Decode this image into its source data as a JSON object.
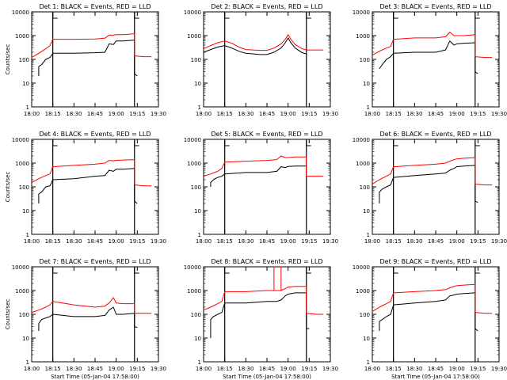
{
  "figure": {
    "background": "#ffffff",
    "colors": {
      "events": "#000000",
      "lld": "#ff0000",
      "axes": "#000000"
    }
  },
  "chart_data": [
    {
      "type": "line",
      "title": "Det 1: BLACK = Events, RED = LLD",
      "xlabel": "",
      "ylabel": "Counts/sec",
      "y_scale": "log",
      "ylim": [
        1,
        10000
      ],
      "y_ticks": [
        "1",
        "10",
        "100",
        "1000",
        "10000"
      ],
      "x_ticks": [
        "18:00",
        "18:15",
        "18:30",
        "18:45",
        "19:00",
        "19:15",
        "19:30"
      ],
      "markers": [
        "18:15",
        "19:13"
      ],
      "series": [
        {
          "role": "events",
          "color": "#000000",
          "x": [
            "18:05",
            "18:05",
            "18:07",
            "18:10",
            "18:13",
            "18:15",
            "18:30",
            "18:45",
            "18:52",
            "18:55",
            "18:58",
            "19:00",
            "19:05",
            "19:13",
            "19:13",
            "19:15"
          ],
          "y": [
            20,
            50,
            60,
            100,
            120,
            180,
            180,
            190,
            200,
            450,
            420,
            600,
            600,
            650,
            25,
            20
          ]
        },
        {
          "role": "lld",
          "color": "#ff0000",
          "x": [
            "18:00",
            "18:05",
            "18:10",
            "18:13",
            "18:15",
            "18:30",
            "18:45",
            "18:52",
            "18:55",
            "18:58",
            "19:00",
            "19:05",
            "19:13",
            "19:13",
            "19:20",
            "19:25"
          ],
          "y": [
            120,
            180,
            280,
            380,
            700,
            700,
            720,
            780,
            1050,
            1050,
            1100,
            1100,
            1200,
            140,
            130,
            130
          ]
        }
      ]
    },
    {
      "type": "line",
      "title": "Det 2: BLACK = Events, RED = LLD",
      "xlabel": "",
      "ylabel": "",
      "y_scale": "log",
      "ylim": [
        1,
        10000
      ],
      "y_ticks": [
        "1",
        "10",
        "100",
        "1000",
        "10000"
      ],
      "x_ticks": [
        "18:00",
        "18:15",
        "18:30",
        "18:45",
        "19:00",
        "19:15",
        "19:30"
      ],
      "markers": [
        "18:15",
        "19:13"
      ],
      "series": [
        {
          "role": "events",
          "color": "#000000",
          "x": [
            "18:00",
            "18:05",
            "18:10",
            "18:15",
            "18:20",
            "18:25",
            "18:30",
            "18:40",
            "18:45",
            "18:50",
            "18:55",
            "18:58",
            "19:00",
            "19:02",
            "19:05",
            "19:10",
            "19:13"
          ],
          "y": [
            200,
            260,
            330,
            380,
            300,
            220,
            180,
            160,
            160,
            200,
            300,
            500,
            800,
            500,
            300,
            190,
            170
          ]
        },
        {
          "role": "lld",
          "color": "#ff0000",
          "x": [
            "18:00",
            "18:05",
            "18:10",
            "18:15",
            "18:20",
            "18:25",
            "18:30",
            "18:40",
            "18:45",
            "18:50",
            "18:55",
            "18:58",
            "19:00",
            "19:02",
            "19:05",
            "19:10",
            "19:13",
            "19:20",
            "19:25"
          ],
          "y": [
            280,
            380,
            500,
            600,
            480,
            330,
            260,
            240,
            240,
            300,
            450,
            700,
            1100,
            700,
            420,
            280,
            250,
            250,
            250
          ]
        }
      ]
    },
    {
      "type": "line",
      "title": "Det 3: BLACK = Events, RED = LLD",
      "xlabel": "",
      "ylabel": "",
      "y_scale": "log",
      "ylim": [
        1,
        10000
      ],
      "y_ticks": [
        "1",
        "10",
        "100",
        "1000",
        "10000"
      ],
      "x_ticks": [
        "18:00",
        "18:15",
        "18:30",
        "18:45",
        "19:00",
        "19:15",
        "19:30"
      ],
      "markers": [
        "18:15",
        "19:13"
      ],
      "series": [
        {
          "role": "events",
          "color": "#000000",
          "x": [
            "18:05",
            "18:07",
            "18:10",
            "18:13",
            "18:15",
            "18:30",
            "18:45",
            "18:52",
            "18:55",
            "18:58",
            "19:00",
            "19:05",
            "19:13",
            "19:13",
            "19:15"
          ],
          "y": [
            40,
            60,
            100,
            130,
            180,
            200,
            200,
            250,
            600,
            400,
            450,
            480,
            500,
            30,
            25
          ]
        },
        {
          "role": "lld",
          "color": "#ff0000",
          "x": [
            "18:00",
            "18:05",
            "18:10",
            "18:13",
            "18:15",
            "18:30",
            "18:45",
            "18:52",
            "18:55",
            "18:58",
            "19:00",
            "19:05",
            "19:13",
            "19:13",
            "19:20",
            "19:25"
          ],
          "y": [
            150,
            220,
            300,
            350,
            700,
            800,
            800,
            900,
            1400,
            1000,
            1000,
            1000,
            1100,
            130,
            120,
            120
          ]
        }
      ]
    },
    {
      "type": "line",
      "title": "Det 4: BLACK = Events, RED = LLD",
      "xlabel": "",
      "ylabel": "Counts/sec",
      "y_scale": "log",
      "ylim": [
        1,
        10000
      ],
      "y_ticks": [
        "1",
        "10",
        "100",
        "1000",
        "10000"
      ],
      "x_ticks": [
        "18:00",
        "18:15",
        "18:30",
        "18:45",
        "19:00",
        "19:15",
        "19:30"
      ],
      "markers": [
        "18:15",
        "19:13"
      ],
      "series": [
        {
          "role": "events",
          "color": "#000000",
          "x": [
            "18:05",
            "18:05",
            "18:07",
            "18:10",
            "18:13",
            "18:15",
            "18:30",
            "18:45",
            "18:52",
            "18:55",
            "18:58",
            "19:00",
            "19:05",
            "19:13",
            "19:13",
            "19:15"
          ],
          "y": [
            20,
            50,
            60,
            100,
            110,
            200,
            220,
            280,
            300,
            500,
            450,
            550,
            550,
            600,
            25,
            20
          ]
        },
        {
          "role": "lld",
          "color": "#ff0000",
          "x": [
            "18:00",
            "18:05",
            "18:10",
            "18:13",
            "18:15",
            "18:30",
            "18:45",
            "18:52",
            "18:55",
            "18:58",
            "19:00",
            "19:05",
            "19:13",
            "19:13",
            "19:20",
            "19:25"
          ],
          "y": [
            150,
            220,
            300,
            350,
            700,
            800,
            900,
            1000,
            1300,
            1250,
            1300,
            1350,
            1400,
            120,
            110,
            110
          ]
        }
      ]
    },
    {
      "type": "line",
      "title": "Det 5: BLACK = Events, RED = LLD",
      "xlabel": "",
      "ylabel": "",
      "y_scale": "log",
      "ylim": [
        1,
        10000
      ],
      "y_ticks": [
        "1",
        "10",
        "100",
        "1000",
        "10000"
      ],
      "x_ticks": [
        "18:00",
        "18:15",
        "18:30",
        "18:45",
        "19:00",
        "19:15",
        "19:30"
      ],
      "markers": [
        "18:15",
        "19:13"
      ],
      "series": [
        {
          "role": "events",
          "color": "#000000",
          "x": [
            "18:05",
            "18:05",
            "18:07",
            "18:10",
            "18:13",
            "18:15",
            "18:30",
            "18:45",
            "18:52",
            "18:55",
            "18:58",
            "19:00",
            "19:05",
            "19:13"
          ],
          "y": [
            100,
            150,
            200,
            250,
            280,
            350,
            400,
            400,
            450,
            700,
            650,
            720,
            750,
            750
          ]
        },
        {
          "role": "lld",
          "color": "#ff0000",
          "x": [
            "18:00",
            "18:05",
            "18:10",
            "18:13",
            "18:15",
            "18:30",
            "18:45",
            "18:52",
            "18:55",
            "18:58",
            "19:00",
            "19:05",
            "19:13",
            "19:13",
            "19:20",
            "19:25"
          ],
          "y": [
            280,
            350,
            450,
            600,
            1100,
            1200,
            1300,
            1400,
            2000,
            1700,
            1700,
            1800,
            1800,
            280,
            280,
            280
          ]
        }
      ]
    },
    {
      "type": "line",
      "title": "Det 6: BLACK = Events, RED = LLD",
      "xlabel": "",
      "ylabel": "",
      "y_scale": "log",
      "ylim": [
        1,
        10000
      ],
      "y_ticks": [
        "1",
        "10",
        "100",
        "1000",
        "10000"
      ],
      "x_ticks": [
        "18:00",
        "18:15",
        "18:30",
        "18:45",
        "19:00",
        "19:15",
        "19:30"
      ],
      "markers": [
        "18:15",
        "19:13"
      ],
      "series": [
        {
          "role": "events",
          "color": "#000000",
          "x": [
            "18:05",
            "18:05",
            "18:07",
            "18:10",
            "18:13",
            "18:15",
            "18:30",
            "18:45",
            "18:52",
            "18:55",
            "18:58",
            "19:00",
            "19:05",
            "19:13",
            "19:13",
            "19:15"
          ],
          "y": [
            20,
            60,
            80,
            100,
            120,
            250,
            300,
            350,
            380,
            500,
            600,
            700,
            750,
            800,
            25,
            22
          ]
        },
        {
          "role": "lld",
          "color": "#ff0000",
          "x": [
            "18:00",
            "18:05",
            "18:10",
            "18:13",
            "18:15",
            "18:30",
            "18:45",
            "18:52",
            "18:55",
            "18:58",
            "19:00",
            "19:05",
            "19:13",
            "19:13",
            "19:20",
            "19:25"
          ],
          "y": [
            130,
            200,
            280,
            350,
            700,
            800,
            900,
            1000,
            1200,
            1400,
            1500,
            1600,
            1700,
            130,
            120,
            120
          ]
        }
      ]
    },
    {
      "type": "line",
      "title": "Det 7: BLACK = Events, RED = LLD",
      "xlabel": "Start Time (05-Jan-04 17:58:00)",
      "ylabel": "Counts/sec",
      "y_scale": "log",
      "ylim": [
        1,
        10000
      ],
      "y_ticks": [
        "1",
        "10",
        "100",
        "1000",
        "10000"
      ],
      "x_ticks": [
        "18:00",
        "18:15",
        "18:30",
        "18:45",
        "19:00",
        "19:15",
        "19:30"
      ],
      "markers": [
        "18:15",
        "19:13"
      ],
      "series": [
        {
          "role": "events",
          "color": "#000000",
          "x": [
            "18:05",
            "18:05",
            "18:07",
            "18:10",
            "18:13",
            "18:15",
            "18:30",
            "18:45",
            "18:52",
            "18:55",
            "18:58",
            "19:00",
            "19:05",
            "19:13",
            "19:13",
            "19:15"
          ],
          "y": [
            20,
            40,
            60,
            70,
            80,
            100,
            80,
            80,
            90,
            150,
            200,
            100,
            100,
            110,
            30,
            28
          ]
        },
        {
          "role": "lld",
          "color": "#ff0000",
          "x": [
            "18:00",
            "18:05",
            "18:10",
            "18:13",
            "18:15",
            "18:30",
            "18:45",
            "18:52",
            "18:55",
            "18:58",
            "19:00",
            "19:05",
            "19:13",
            "19:13",
            "19:20",
            "19:25"
          ],
          "y": [
            120,
            150,
            200,
            250,
            350,
            250,
            200,
            220,
            300,
            500,
            300,
            280,
            280,
            110,
            110,
            110
          ]
        }
      ]
    },
    {
      "type": "line",
      "title": "Det 8: BLACK = Events, RED = LLD",
      "xlabel": "Start Time (05-Jan-04 17:58:00)",
      "ylabel": "",
      "y_scale": "log",
      "ylim": [
        1,
        10000
      ],
      "y_ticks": [
        "1",
        "10",
        "100",
        "1000",
        "10000"
      ],
      "x_ticks": [
        "18:00",
        "18:15",
        "18:30",
        "18:45",
        "19:00",
        "19:15",
        "19:30"
      ],
      "markers": [
        "18:15",
        "19:13"
      ],
      "series": [
        {
          "role": "events",
          "color": "#000000",
          "x": [
            "18:05",
            "18:05",
            "18:07",
            "18:10",
            "18:13",
            "18:15",
            "18:30",
            "18:45",
            "18:52",
            "18:55",
            "18:58",
            "19:00",
            "19:05",
            "19:13",
            "19:13",
            "19:15"
          ],
          "y": [
            10,
            60,
            80,
            100,
            120,
            300,
            300,
            350,
            350,
            400,
            600,
            700,
            800,
            800,
            25,
            25
          ]
        },
        {
          "role": "lld",
          "color": "#ff0000",
          "x": [
            "18:00",
            "18:05",
            "18:10",
            "18:13",
            "18:15",
            "18:30",
            "18:45",
            "18:50",
            "18:50",
            "18:50",
            "18:52",
            "18:55",
            "18:55",
            "18:55",
            "18:58",
            "19:00",
            "19:05",
            "19:13",
            "19:13",
            "19:20",
            "19:25"
          ],
          "y": [
            150,
            200,
            280,
            350,
            900,
            900,
            1000,
            1000,
            12000,
            1000,
            1000,
            1000,
            12000,
            1000,
            1200,
            1400,
            1500,
            1500,
            110,
            100,
            100
          ]
        }
      ]
    },
    {
      "type": "line",
      "title": "Det 9: BLACK = Events, RED = LLD",
      "xlabel": "Start Time (05-Jan-04 17:58:00)",
      "ylabel": "",
      "y_scale": "log",
      "ylim": [
        1,
        10000
      ],
      "y_ticks": [
        "1",
        "10",
        "100",
        "1000",
        "10000"
      ],
      "x_ticks": [
        "18:00",
        "18:15",
        "18:30",
        "18:45",
        "19:00",
        "19:15",
        "19:30"
      ],
      "markers": [
        "18:15",
        "19:13"
      ],
      "series": [
        {
          "role": "events",
          "color": "#000000",
          "x": [
            "18:05",
            "18:05",
            "18:07",
            "18:10",
            "18:13",
            "18:15",
            "18:30",
            "18:45",
            "18:52",
            "18:55",
            "18:58",
            "19:00",
            "19:05",
            "19:13",
            "19:13",
            "19:15"
          ],
          "y": [
            20,
            50,
            60,
            80,
            100,
            250,
            300,
            350,
            400,
            600,
            650,
            700,
            750,
            800,
            25,
            20
          ]
        },
        {
          "role": "lld",
          "color": "#ff0000",
          "x": [
            "18:00",
            "18:05",
            "18:10",
            "18:13",
            "18:15",
            "18:30",
            "18:45",
            "18:52",
            "18:55",
            "18:58",
            "19:00",
            "19:05",
            "19:13",
            "19:13",
            "19:20",
            "19:25"
          ],
          "y": [
            130,
            200,
            280,
            350,
            800,
            900,
            1000,
            1100,
            1300,
            1500,
            1600,
            1700,
            1800,
            120,
            110,
            110
          ]
        }
      ]
    }
  ]
}
